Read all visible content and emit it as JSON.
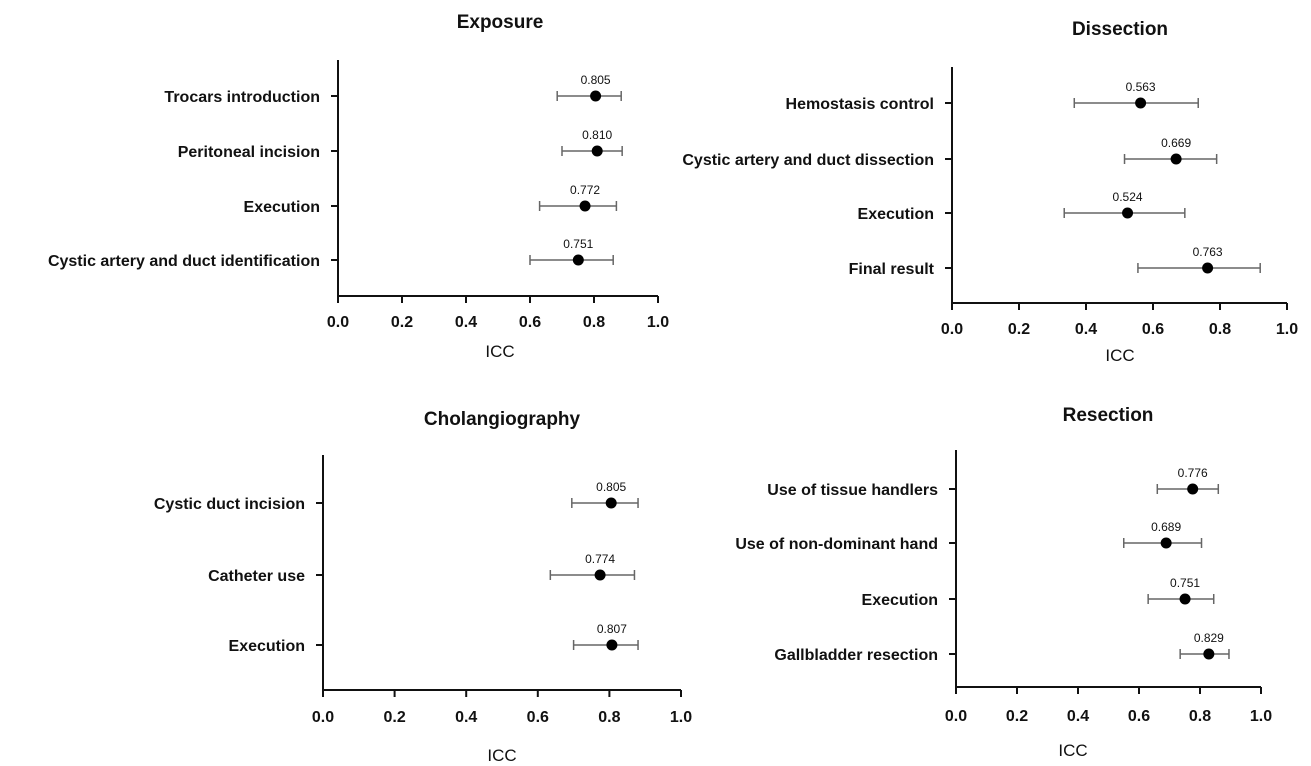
{
  "chart_data": [
    {
      "type": "scatter",
      "title": "Exposure",
      "xlabel": "ICC",
      "xlim": [
        0.0,
        1.0
      ],
      "xticks": [
        "0.0",
        "0.2",
        "0.4",
        "0.6",
        "0.8",
        "1.0"
      ],
      "categories": [
        "Trocars introduction",
        "Peritoneal incision",
        "Execution",
        "Cystic artery and duct identification"
      ],
      "values": [
        0.805,
        0.81,
        0.772,
        0.751
      ],
      "value_labels": [
        "0.805",
        "0.810",
        "0.772",
        "0.751"
      ],
      "ci_low": [
        0.685,
        0.7,
        0.63,
        0.6
      ],
      "ci_high": [
        0.885,
        0.888,
        0.87,
        0.86
      ]
    },
    {
      "type": "scatter",
      "title": "Dissection",
      "xlabel": "ICC",
      "xlim": [
        0.0,
        1.0
      ],
      "xticks": [
        "0.0",
        "0.2",
        "0.4",
        "0.6",
        "0.8",
        "1.0"
      ],
      "categories": [
        "Hemostasis control",
        "Cystic artery and duct dissection",
        "Execution",
        "Final result"
      ],
      "values": [
        0.563,
        0.669,
        0.524,
        0.763
      ],
      "value_labels": [
        "0.563",
        "0.669",
        "0.524",
        "0.763"
      ],
      "ci_low": [
        0.365,
        0.515,
        0.335,
        0.555
      ],
      "ci_high": [
        0.735,
        0.79,
        0.695,
        0.92
      ]
    },
    {
      "type": "scatter",
      "title": "Cholangiography",
      "xlabel": "ICC",
      "xlim": [
        0.0,
        1.0
      ],
      "xticks": [
        "0.0",
        "0.2",
        "0.4",
        "0.6",
        "0.8",
        "1.0"
      ],
      "categories": [
        "Cystic duct incision",
        "Catheter use",
        "Execution"
      ],
      "values": [
        0.805,
        0.774,
        0.807
      ],
      "value_labels": [
        "0.805",
        "0.774",
        "0.807"
      ],
      "ci_low": [
        0.695,
        0.635,
        0.7
      ],
      "ci_high": [
        0.88,
        0.87,
        0.88
      ]
    },
    {
      "type": "scatter",
      "title": "Resection",
      "xlabel": "ICC",
      "xlim": [
        0.0,
        1.0
      ],
      "xticks": [
        "0.0",
        "0.2",
        "0.4",
        "0.6",
        "0.8",
        "1.0"
      ],
      "categories": [
        "Use of tissue handlers",
        "Use of non-dominant hand",
        "Execution",
        "Gallbladder resection"
      ],
      "values": [
        0.776,
        0.689,
        0.751,
        0.829
      ],
      "value_labels": [
        "0.776",
        "0.689",
        "0.751",
        "0.829"
      ],
      "ci_low": [
        0.66,
        0.55,
        0.63,
        0.735
      ],
      "ci_high": [
        0.86,
        0.805,
        0.845,
        0.895
      ]
    }
  ],
  "colors": {
    "axis": "#111111",
    "errorbar": "#666666",
    "point": "#000000",
    "text": "#111111"
  }
}
